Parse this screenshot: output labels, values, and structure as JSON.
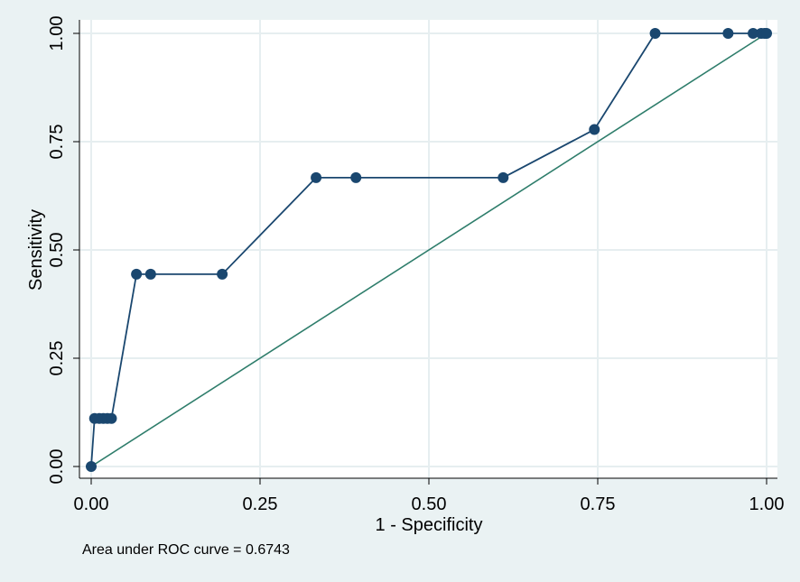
{
  "chart_data": {
    "type": "line",
    "title": "",
    "xlabel": "1 - Specificity",
    "ylabel": "Sensitivity",
    "xlim": [
      0,
      1
    ],
    "ylim": [
      0,
      1
    ],
    "xticks": [
      "0.00",
      "0.25",
      "0.50",
      "0.75",
      "1.00"
    ],
    "yticks": [
      "0.00",
      "0.25",
      "0.50",
      "0.75",
      "1.00"
    ],
    "grid": true,
    "note": "Area under ROC curve = 0.6743",
    "series": [
      {
        "type": "line-markers",
        "color": "#1a476f",
        "x": [
          0.0,
          0.005,
          0.012,
          0.018,
          0.024,
          0.03,
          0.067,
          0.088,
          0.194,
          0.333,
          0.392,
          0.61,
          0.745,
          0.835,
          0.943,
          0.98,
          0.992,
          0.997,
          1.0
        ],
        "y": [
          0.0,
          0.111,
          0.111,
          0.111,
          0.111,
          0.111,
          0.444,
          0.444,
          0.444,
          0.667,
          0.667,
          0.667,
          0.778,
          1.0,
          1.0,
          1.0,
          1.0,
          1.0,
          1.0
        ]
      },
      {
        "type": "reference-line",
        "color": "#2e7d6b",
        "x": [
          0,
          1
        ],
        "y": [
          0,
          1
        ]
      }
    ]
  }
}
